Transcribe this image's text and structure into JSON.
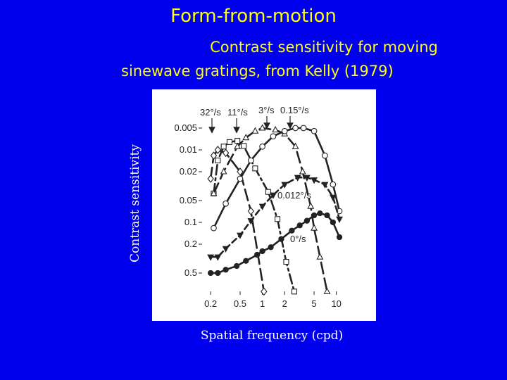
{
  "slide": {
    "title": "Form-from-motion",
    "subtitle_line1": "Contrast sensitivity for moving",
    "subtitle_line2": "sinewave gratings, from Kelly (1979)",
    "ylabel": "Contrast sensitivity",
    "xlabel": "Spatial frequency (cpd)",
    "background_color": "#0000ee",
    "title_color": "#ffff00"
  },
  "chart_data": {
    "type": "line",
    "x_scale": "log",
    "y_scale": "log",
    "y_inverted": true,
    "xlim": [
      0.15,
      12
    ],
    "ylim": [
      0.004,
      1.0
    ],
    "x_ticks": [
      0.2,
      0.5,
      1,
      2,
      5,
      10
    ],
    "x_tick_labels": [
      "0.2",
      "0.5",
      "1",
      "2",
      "5",
      "10"
    ],
    "y_ticks": [
      0.005,
      0.01,
      0.02,
      0.05,
      0.1,
      0.2,
      0.5
    ],
    "y_tick_labels": [
      "0.005",
      "0.01",
      "0.02",
      "0.05",
      "0.1",
      "0.2",
      "0.5"
    ],
    "annotations": [
      "32°/s",
      "11°/s",
      "3°/s",
      "0.15°/s",
      "0.012°/s",
      "0°/s"
    ],
    "grid": false,
    "series": [
      {
        "marker": "diamond",
        "filled": false,
        "dash": "dash-long",
        "points": [
          [
            0.2,
            0.025
          ],
          [
            0.22,
            0.012
          ],
          [
            0.25,
            0.01
          ],
          [
            0.32,
            0.011
          ],
          [
            0.5,
            0.02
          ],
          [
            0.7,
            0.07
          ],
          [
            1.05,
            0.9
          ]
        ]
      },
      {
        "marker": "square",
        "filled": false,
        "dash": "dash-dot",
        "points": [
          [
            0.22,
            0.04
          ],
          [
            0.25,
            0.014
          ],
          [
            0.3,
            0.009
          ],
          [
            0.36,
            0.0078
          ],
          [
            0.46,
            0.0075
          ],
          [
            0.56,
            0.0088
          ],
          [
            0.8,
            0.018
          ],
          [
            1.2,
            0.038
          ],
          [
            1.6,
            0.09
          ],
          [
            2.1,
            0.35
          ],
          [
            2.7,
            0.9
          ]
        ]
      },
      {
        "marker": "triangle",
        "filled": false,
        "dash": "dash-long",
        "points": [
          [
            0.22,
            0.04
          ],
          [
            0.3,
            0.02
          ],
          [
            0.46,
            0.009
          ],
          [
            0.6,
            0.0068
          ],
          [
            0.8,
            0.0055
          ],
          [
            1.0,
            0.005
          ],
          [
            1.5,
            0.0053
          ],
          [
            2.0,
            0.006
          ],
          [
            2.8,
            0.009
          ],
          [
            3.5,
            0.02
          ],
          [
            4.5,
            0.06
          ],
          [
            5.0,
            0.12
          ],
          [
            6.0,
            0.3
          ],
          [
            7.5,
            0.9
          ]
        ]
      },
      {
        "marker": "circle",
        "filled": false,
        "dash": "solid",
        "points": [
          [
            0.22,
            0.12
          ],
          [
            0.32,
            0.055
          ],
          [
            0.5,
            0.025
          ],
          [
            0.7,
            0.014
          ],
          [
            1.0,
            0.009
          ],
          [
            1.4,
            0.0065
          ],
          [
            2.0,
            0.0055
          ],
          [
            2.8,
            0.005
          ],
          [
            3.6,
            0.005
          ],
          [
            5.0,
            0.0055
          ],
          [
            7.0,
            0.012
          ],
          [
            9.0,
            0.03
          ],
          [
            11.0,
            0.07
          ]
        ]
      },
      {
        "marker": "triangle-down",
        "filled": true,
        "dash": "dash-short",
        "points": [
          [
            0.2,
            0.3
          ],
          [
            0.25,
            0.3
          ],
          [
            0.32,
            0.23
          ],
          [
            0.5,
            0.15
          ],
          [
            0.7,
            0.095
          ],
          [
            1.0,
            0.06
          ],
          [
            1.4,
            0.042
          ],
          [
            2.0,
            0.03
          ],
          [
            3.0,
            0.024
          ],
          [
            4.0,
            0.024
          ],
          [
            5.0,
            0.026
          ],
          [
            7.0,
            0.03
          ],
          [
            9.0,
            0.045
          ],
          [
            11.0,
            0.09
          ]
        ]
      },
      {
        "marker": "circle",
        "filled": true,
        "dash": "solid",
        "points": [
          [
            0.2,
            0.5
          ],
          [
            0.25,
            0.5
          ],
          [
            0.32,
            0.45
          ],
          [
            0.45,
            0.4
          ],
          [
            0.6,
            0.34
          ],
          [
            0.85,
            0.28
          ],
          [
            1.0,
            0.25
          ],
          [
            1.3,
            0.22
          ],
          [
            1.8,
            0.17
          ],
          [
            2.5,
            0.13
          ],
          [
            3.2,
            0.11
          ],
          [
            4.0,
            0.095
          ],
          [
            5.0,
            0.08
          ],
          [
            6.0,
            0.075
          ],
          [
            7.5,
            0.08
          ],
          [
            9.0,
            0.1
          ],
          [
            11.0,
            0.16
          ]
        ]
      }
    ]
  }
}
